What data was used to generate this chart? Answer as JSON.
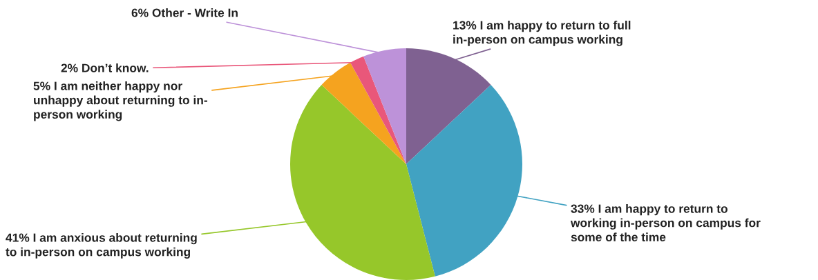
{
  "chart_data": {
    "type": "pie",
    "categories": [
      "I am happy to return to full\nin-person on campus working",
      "I am happy to return to\nworking in-person on campus for\nsome of the time",
      "I am anxious about returning\nto in-person on campus working",
      "I am neither happy nor\nunhappy about returning to in-\nperson working",
      "Don’t know.",
      "Other - Write In"
    ],
    "values": [
      13,
      33,
      41,
      5,
      2,
      6
    ],
    "value_labels": [
      "13%",
      "33%",
      "41%",
      "5%",
      "2%",
      "6%"
    ],
    "colors": [
      "#7f6191",
      "#41a2c2",
      "#96c72a",
      "#f5a31f",
      "#e9577a",
      "#bd92d9"
    ]
  }
}
